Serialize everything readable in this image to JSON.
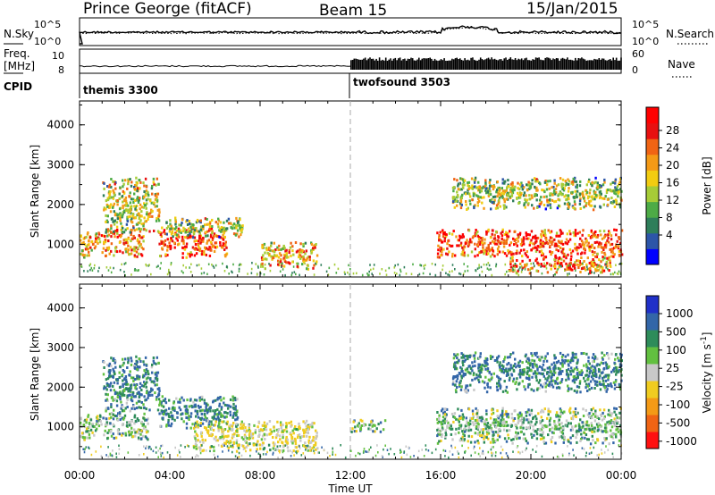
{
  "header": {
    "station": "Prince George (fitACF)",
    "beam": "Beam 15",
    "date": "15/Jan/2015"
  },
  "noise_panel": {
    "left_label": "N.Sky",
    "right_label": "N.Search",
    "left_ticks": [
      "10^5",
      "10^0"
    ],
    "right_ticks": [
      "10^5",
      "10^0"
    ]
  },
  "freq_panel": {
    "left_label_1": "Freq.",
    "left_label_2": "[MHz]",
    "left_ticks": [
      "10",
      "8"
    ],
    "right_label": "Nave",
    "right_ticks": [
      "60",
      "0"
    ],
    "cpid_label": "CPID",
    "modes": [
      {
        "name": "themis 3300",
        "start_hour": 0,
        "end_hour": 12
      },
      {
        "name": "twofsound 3503",
        "start_hour": 12,
        "end_hour": 24
      }
    ]
  },
  "axes": {
    "ylabel": "Slant Range [km]",
    "yticks": [
      "4000",
      "3000",
      "2000",
      "1000"
    ],
    "xlabel": "Time UT",
    "xticks": [
      "00:00",
      "04:00",
      "08:00",
      "12:00",
      "16:00",
      "20:00",
      "00:00"
    ],
    "xlim_hours": [
      0,
      24
    ],
    "ylim_km": [
      180,
      4600
    ]
  },
  "power_colorbar": {
    "label": "Power [dB]",
    "ticks": [
      "28",
      "24",
      "20",
      "16",
      "12",
      "8",
      "4"
    ],
    "colors": [
      "#0000ff",
      "#2c55a8",
      "#2e7e5a",
      "#4dab46",
      "#a6cc37",
      "#f2cc11",
      "#f49a16",
      "#f06414",
      "#e81010",
      "#ff0000"
    ]
  },
  "velocity_colorbar": {
    "label": "Velocity [m s",
    "label_sup": "-1",
    "label_end": "]",
    "ticks": [
      "1000",
      "500",
      "100",
      "25",
      "-25",
      "-100",
      "-500",
      "-1000"
    ],
    "colors": [
      "#2030c8",
      "#3366a8",
      "#2e8c5a",
      "#62c040",
      "#c8c8c8",
      "#f0cc20",
      "#f49a16",
      "#f06414",
      "#ff1010"
    ]
  },
  "chart_data": [
    {
      "type": "heatmap",
      "title": "",
      "xlabel": "Time UT",
      "ylabel": "Slant Range [km]",
      "colorbar": "Power [dB]",
      "regions": [
        {
          "t": [
            0.0,
            2.8
          ],
          "range": [
            700,
            1400
          ],
          "power_db": 22
        },
        {
          "t": [
            1.0,
            3.5
          ],
          "range": [
            1300,
            2700
          ],
          "power_db": 16
        },
        {
          "t": [
            3.5,
            6.5
          ],
          "range": [
            700,
            1450
          ],
          "power_db": 26
        },
        {
          "t": [
            3.8,
            7.2
          ],
          "range": [
            1200,
            1700
          ],
          "power_db": 14
        },
        {
          "t": [
            8.0,
            10.5
          ],
          "range": [
            400,
            1100
          ],
          "power_db": 20
        },
        {
          "t": [
            15.8,
            24.0
          ],
          "range": [
            700,
            1400
          ],
          "power_db": 26
        },
        {
          "t": [
            16.5,
            24.0
          ],
          "range": [
            1900,
            2700
          ],
          "power_db": 14
        },
        {
          "t": [
            19.0,
            23.5
          ],
          "range": [
            300,
            700
          ],
          "power_db": 24
        }
      ]
    },
    {
      "type": "heatmap",
      "title": "",
      "xlabel": "Time UT",
      "ylabel": "Slant Range [km]",
      "colorbar": "Velocity [m s^-1]",
      "regions": [
        {
          "t": [
            0.0,
            3.0
          ],
          "range": [
            700,
            1400
          ],
          "velocity": 0
        },
        {
          "t": [
            1.0,
            3.5
          ],
          "range": [
            1400,
            2800
          ],
          "velocity": 100
        },
        {
          "t": [
            3.5,
            7.0
          ],
          "range": [
            1000,
            1800
          ],
          "velocity": 100
        },
        {
          "t": [
            5.0,
            10.5
          ],
          "range": [
            400,
            1200
          ],
          "velocity": -100
        },
        {
          "t": [
            12.0,
            13.5
          ],
          "range": [
            900,
            1200
          ],
          "velocity": 0
        },
        {
          "t": [
            15.8,
            24.0
          ],
          "range": [
            600,
            1500
          ],
          "velocity": 0
        },
        {
          "t": [
            16.5,
            24.0
          ],
          "range": [
            1900,
            2900
          ],
          "velocity": 100
        }
      ]
    }
  ]
}
